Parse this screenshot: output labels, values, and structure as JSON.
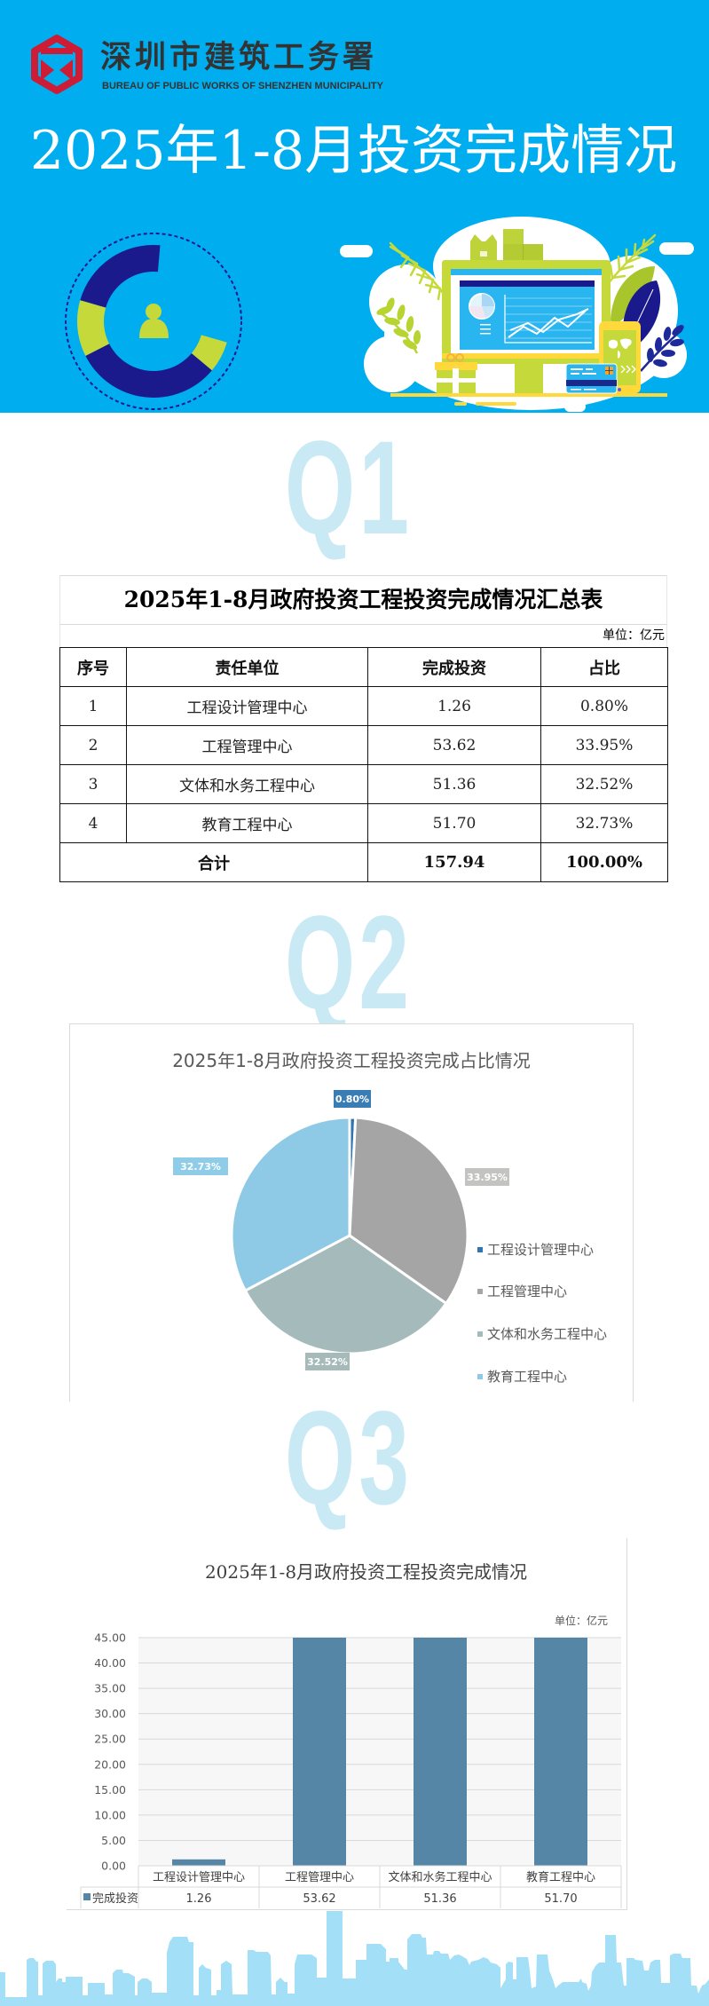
{
  "header": {
    "org_name_cn": "深圳市建筑工务署",
    "org_name_en": "BUREAU OF PUBLIC WORKS OF SHENZHEN MUNICIPALITY",
    "title": "2025年1-8月投资完成情况",
    "background_color": "#00AEEF",
    "logo_color": "#CC1C36"
  },
  "sections": [
    {
      "marker": "Q1"
    },
    {
      "marker": "Q2"
    },
    {
      "marker": "Q3"
    }
  ],
  "chart_data": [
    {
      "type": "table",
      "title": "2025年1-8月政府投资工程投资完成情况汇总表",
      "unit": "单位：亿元",
      "columns": [
        "序号",
        "责任单位",
        "完成投资",
        "占比"
      ],
      "rows": [
        [
          "1",
          "工程设计管理中心",
          "1.26",
          "0.80%"
        ],
        [
          "2",
          "工程管理中心",
          "53.62",
          "33.95%"
        ],
        [
          "3",
          "文体和水务工程中心",
          "51.36",
          "32.52%"
        ],
        [
          "4",
          "教育工程中心",
          "51.70",
          "32.73%"
        ]
      ],
      "total": {
        "label": "合计",
        "investment": "157.94",
        "share": "100.00%"
      }
    },
    {
      "type": "pie",
      "title": "2025年1-8月政府投资工程投资完成占比情况",
      "categories": [
        "工程设计管理中心",
        "工程管理中心",
        "文体和水务工程中心",
        "教育工程中心"
      ],
      "values": [
        0.8,
        33.95,
        32.52,
        32.73
      ],
      "labels": [
        "0.80%",
        "33.95%",
        "32.52%",
        "32.73%"
      ],
      "colors": [
        "#2E75B6",
        "#A5A5A5",
        "#A5BBBB",
        "#8ECAE6"
      ],
      "label_colors": [
        "#3A7DB5",
        "#C3C3C1",
        "#A6BABA",
        "#8ECCE8"
      ],
      "legend_position": "right"
    },
    {
      "type": "bar",
      "title": "2025年1-8月政府投资工程投资完成情况",
      "unit_label": "单位：亿元",
      "categories": [
        "工程设计管理中心",
        "工程管理中心",
        "文体和水务工程中心",
        "教育工程中心"
      ],
      "series": [
        {
          "name": "完成投资",
          "values": [
            1.26,
            53.62,
            51.36,
            51.7
          ],
          "value_labels": [
            "1.26",
            "53.62",
            "51.36",
            "51.70"
          ],
          "color": "#5686A6"
        }
      ],
      "xlabel": "",
      "ylabel": "",
      "ylim": [
        0,
        45
      ],
      "yticks": [
        "0.00",
        "5.00",
        "10.00",
        "15.00",
        "20.00",
        "25.00",
        "30.00",
        "35.00",
        "40.00",
        "45.00"
      ],
      "grid": true,
      "data_table": true
    }
  ]
}
